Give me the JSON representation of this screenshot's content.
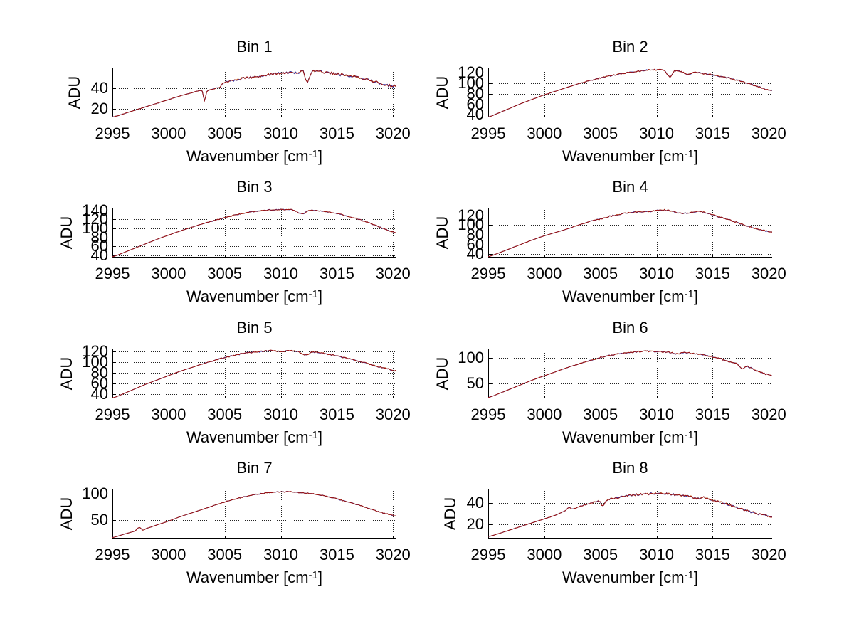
{
  "figure": {
    "background": "#ffffff",
    "text_color": "#000000",
    "grid_color": "#222222",
    "axis_color": "#000000",
    "ylabel": "ADU",
    "xlabel_prefix": "Wavenumber [cm",
    "xlabel_sup": "-1",
    "xlabel_suffix": "]",
    "x_ticks": [
      2995,
      3000,
      3005,
      3010,
      3015,
      3020
    ],
    "line_colors": [
      "#d2691e",
      "#2a35b0",
      "#9b1212"
    ]
  },
  "chart_data": [
    {
      "type": "line",
      "title": "Bin 1",
      "ylabel": "ADU",
      "xlabel": "Wavenumber [cm^-1]",
      "xlim": [
        2995,
        3020.3
      ],
      "ylim": [
        11.5,
        60.5
      ],
      "yticks": [
        20,
        40
      ],
      "grid": true,
      "legend": "none",
      "x": [
        2995,
        2996,
        2997,
        2998,
        2999,
        3000,
        3001,
        3002,
        3003,
        3003.2,
        3003.4,
        3004,
        3004.6,
        3004.8,
        3005.5,
        3006,
        3007,
        3008,
        3009,
        3010,
        3010.8,
        3011.5,
        3012,
        3012.3,
        3012.8,
        3013.3,
        3014,
        3015,
        3016,
        3017,
        3018,
        3019,
        3019.6,
        3020.3
      ],
      "y": [
        12,
        15,
        18.5,
        22,
        25.5,
        29,
        32.5,
        35.5,
        37.5,
        28,
        37,
        39.5,
        41,
        45,
        47,
        48.5,
        50.5,
        52,
        53.5,
        55,
        56,
        55,
        56.5,
        46,
        56,
        57,
        55.5,
        54,
        52.5,
        50.5,
        48,
        45,
        43,
        42.5
      ],
      "noise_amp": 1.3,
      "noise_from": 3003
    },
    {
      "type": "line",
      "title": "Bin 2",
      "ylabel": "ADU",
      "xlabel": "Wavenumber [cm^-1]",
      "xlim": [
        2995,
        3020.3
      ],
      "ylim": [
        35,
        130
      ],
      "yticks": [
        40,
        60,
        80,
        100,
        120
      ],
      "grid": true,
      "legend": "none",
      "x": [
        2995,
        2996,
        2997,
        2998,
        2999,
        3000,
        3001,
        3002,
        3003,
        3004,
        3005,
        3006,
        3007,
        3008,
        3009,
        3010,
        3010.7,
        3011.2,
        3011.6,
        3012.3,
        3012.8,
        3013.4,
        3014,
        3015,
        3016,
        3017,
        3018,
        3019,
        3020.3
      ],
      "y": [
        36,
        44,
        53,
        62,
        70,
        78,
        85,
        92,
        99,
        105,
        110,
        115,
        119,
        122,
        124.5,
        126,
        125,
        112,
        124,
        121,
        117,
        121,
        119,
        116,
        112,
        107,
        101,
        94,
        86
      ],
      "noise_amp": 1.3,
      "noise_from": 3002
    },
    {
      "type": "line",
      "title": "Bin 3",
      "ylabel": "ADU",
      "xlabel": "Wavenumber [cm^-1]",
      "xlim": [
        2995,
        3020.3
      ],
      "ylim": [
        35,
        146
      ],
      "yticks": [
        40,
        60,
        80,
        100,
        120,
        140
      ],
      "grid": true,
      "legend": "none",
      "x": [
        2995,
        2996,
        2997,
        2998,
        2999,
        3000,
        3001,
        3002,
        3003,
        3004,
        3005,
        3006,
        3007,
        3008,
        3009,
        3010,
        3011,
        3011.9,
        3012.5,
        3013,
        3014,
        3015,
        3016,
        3017,
        3018,
        3019,
        3020.3
      ],
      "y": [
        37,
        46,
        56,
        66,
        76,
        85,
        94,
        102,
        110,
        117,
        124,
        130,
        135,
        139,
        141,
        142,
        141,
        133,
        139,
        140,
        137,
        133,
        127,
        120,
        111,
        101,
        90
      ],
      "noise_amp": 1.2,
      "noise_from": 3002
    },
    {
      "type": "line",
      "title": "Bin 4",
      "ylabel": "ADU",
      "xlabel": "Wavenumber [cm^-1]",
      "xlim": [
        2995,
        3020.3
      ],
      "ylim": [
        33,
        136
      ],
      "yticks": [
        40,
        60,
        80,
        100,
        120
      ],
      "grid": true,
      "legend": "none",
      "x": [
        2995,
        2996,
        2997,
        2998,
        2999,
        3000,
        3001,
        3002,
        3003,
        3004,
        3005,
        3006,
        3007,
        3008,
        3009,
        3010,
        3010.8,
        3011.5,
        3012.3,
        3013,
        3013.8,
        3014.5,
        3015,
        3016,
        3017,
        3018,
        3019,
        3020.3
      ],
      "y": [
        35,
        43,
        52,
        61,
        70,
        78,
        85,
        92,
        100,
        107,
        113,
        119,
        124,
        127,
        128,
        130,
        131,
        128,
        124,
        126,
        128,
        125,
        121,
        114,
        107,
        99,
        92,
        86
      ],
      "noise_amp": 1.4,
      "noise_from": 3002
    },
    {
      "type": "line",
      "title": "Bin 5",
      "ylabel": "ADU",
      "xlabel": "Wavenumber [cm^-1]",
      "xlim": [
        2995,
        3020.3
      ],
      "ylim": [
        32,
        126
      ],
      "yticks": [
        40,
        60,
        80,
        100,
        120
      ],
      "grid": true,
      "legend": "none",
      "x": [
        2995,
        2996,
        2997,
        2998,
        2999,
        3000,
        3001,
        3002,
        3003,
        3004,
        3005,
        3006,
        3007,
        3008,
        3009,
        3010,
        3010.8,
        3011.5,
        3012.2,
        3012.8,
        3013.5,
        3014,
        3015,
        3016,
        3017,
        3018,
        3019,
        3020.3
      ],
      "y": [
        33,
        41,
        50,
        59,
        67,
        75,
        83,
        90,
        97,
        103,
        109,
        114,
        118,
        120,
        122,
        121,
        122,
        120,
        114,
        119,
        118,
        116,
        112,
        107,
        102,
        96,
        90,
        84
      ],
      "noise_amp": 1.3,
      "noise_from": 3002
    },
    {
      "type": "line",
      "title": "Bin 6",
      "ylabel": "ADU",
      "xlabel": "Wavenumber [cm^-1]",
      "xlim": [
        2995,
        3020.3
      ],
      "ylim": [
        20,
        119
      ],
      "yticks": [
        50,
        100
      ],
      "grid": true,
      "legend": "none",
      "x": [
        2995,
        2996,
        2997,
        2998,
        2999,
        3000,
        3001,
        3002,
        3003,
        3004,
        3005,
        3006,
        3007,
        3008,
        3009,
        3010,
        3011,
        3011.8,
        3012.5,
        3013,
        3014,
        3015,
        3015.8,
        3016.5,
        3017.2,
        3017.6,
        3018,
        3018.6,
        3019,
        3019.5,
        3020.3
      ],
      "y": [
        22,
        30,
        39,
        48,
        57,
        65,
        73,
        81,
        88,
        95,
        101,
        106,
        110,
        112,
        114,
        113,
        112,
        109,
        111,
        110,
        107,
        103,
        98,
        93,
        88,
        79,
        84,
        78,
        74,
        70,
        66
      ],
      "noise_amp": 1.4,
      "noise_from": 3002
    },
    {
      "type": "line",
      "title": "Bin 7",
      "ylabel": "ADU",
      "xlabel": "Wavenumber [cm^-1]",
      "xlim": [
        2995,
        3020.3
      ],
      "ylim": [
        15,
        109
      ],
      "yticks": [
        50,
        100
      ],
      "grid": true,
      "legend": "none",
      "x": [
        2995,
        2996,
        2997,
        2997.4,
        2997.7,
        2998,
        2999,
        3000,
        3001,
        3002,
        3003,
        3004,
        3005,
        3006,
        3007,
        3008,
        3009,
        3010,
        3011,
        3012,
        3013,
        3014,
        3015,
        3016,
        3017,
        3018,
        3019,
        3020.3
      ],
      "y": [
        17,
        23,
        29,
        36,
        31,
        34,
        41,
        48,
        56,
        63,
        70,
        77,
        84,
        90,
        95,
        99,
        102,
        103,
        103,
        101,
        99,
        95,
        90,
        84,
        78,
        71,
        64,
        58
      ],
      "noise_amp": 0.9,
      "noise_from": 3003
    },
    {
      "type": "line",
      "title": "Bin 8",
      "ylabel": "ADU",
      "xlabel": "Wavenumber [cm^-1]",
      "xlim": [
        2995,
        3020.3
      ],
      "ylim": [
        6,
        54
      ],
      "yticks": [
        20,
        40
      ],
      "grid": true,
      "legend": "none",
      "x": [
        2995,
        2996,
        2997,
        2998,
        2999,
        3000,
        3001,
        3001.9,
        3002.2,
        3002.5,
        3003,
        3004,
        3004.9,
        3005.2,
        3005.6,
        3006,
        3007,
        3008,
        3009,
        3010,
        3011,
        3012,
        3013,
        3013.6,
        3014.2,
        3015,
        3016,
        3017,
        3018,
        3019,
        3020.3
      ],
      "y": [
        8,
        11,
        14.5,
        18,
        21.5,
        25,
        28.5,
        33,
        36,
        34.5,
        36.5,
        39.5,
        42,
        38,
        43,
        44.5,
        46.5,
        48,
        49,
        49.5,
        49,
        48,
        46.5,
        44.5,
        45.5,
        43,
        40,
        36.5,
        33,
        30,
        27.5
      ],
      "noise_amp": 1.0,
      "noise_from": 3002
    }
  ]
}
